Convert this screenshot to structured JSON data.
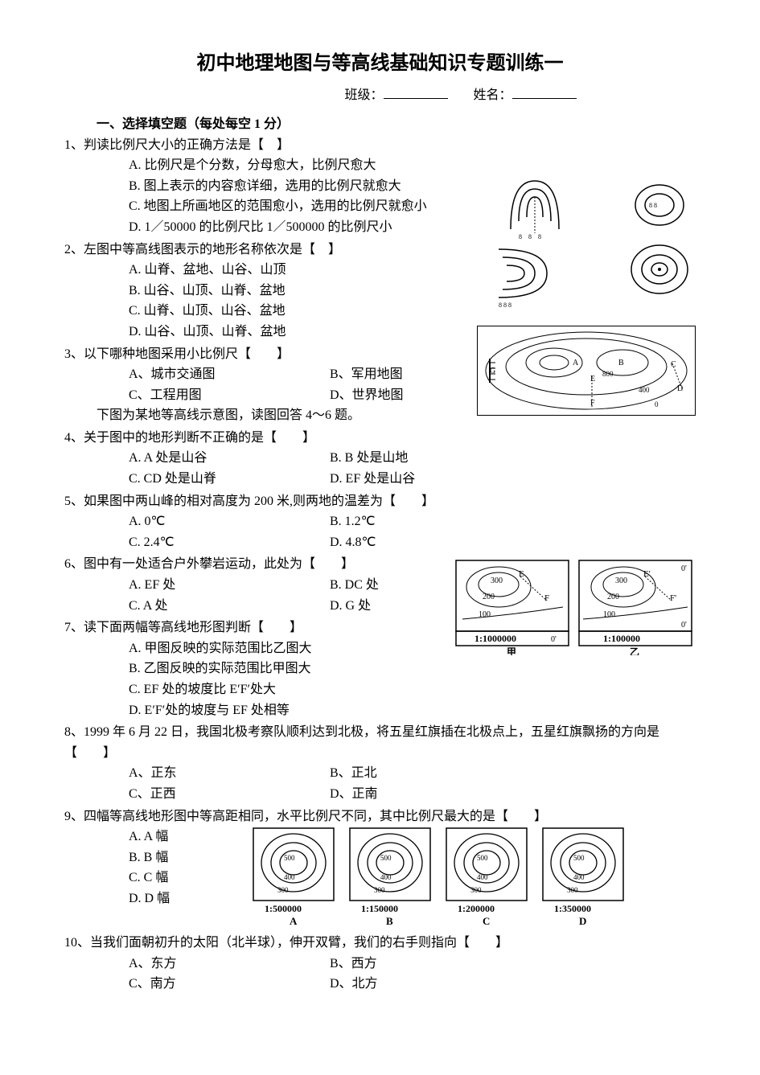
{
  "title": "初中地理地图与等高线基础知识专题训练一",
  "header": {
    "class_label": "班级：",
    "name_label": "姓名："
  },
  "section1": "一、选择填空题（每处每空 1 分）",
  "q1": {
    "stem": "1、判读比例尺大小的正确方法是【　】",
    "A": "A. 比例尺是个分数，分母愈大，比例尺愈大",
    "B": "B. 图上表示的内容愈详细，选用的比例尺就愈大",
    "C": "C. 地图上所画地区的范围愈小，选用的比例尺就愈小",
    "D": "D. 1／50000 的比例尺比 1／500000 的比例尺小"
  },
  "q2": {
    "stem": "2、左图中等高线图表示的地形名称依次是【　】",
    "A": "A. 山脊、盆地、山谷、山顶",
    "B": "B. 山谷、山顶、山脊、盆地",
    "C": "C. 山脊、山顶、山谷、盆地",
    "D": "D. 山谷、山顶、山脊、盆地"
  },
  "q3": {
    "stem": "3、以下哪种地图采用小比例尺【　　】",
    "A": "A、城市交通图",
    "B": "B、军用地图",
    "C": "C、工程用图",
    "D": "D、世界地图",
    "note": "下图为某地等高线示意图，读图回答 4～6 题。"
  },
  "q4": {
    "stem": "4、关于图中的地形判断不正确的是【　　】",
    "A": "A. A 处是山谷",
    "B": "B. B 处是山地",
    "C": "C. CD 处是山脊",
    "D": "D. EF 处是山谷"
  },
  "q5": {
    "stem": "5、如果图中两山峰的相对高度为 200 米,则两地的温差为【　　】",
    "A": "A. 0℃",
    "B": "B. 1.2℃",
    "C": "C. 2.4℃",
    "D": "D. 4.8℃"
  },
  "q6": {
    "stem": "6、图中有一处适合户外攀岩运动，此处为【　　】",
    "A": "A. EF 处",
    "B": "B. DC 处",
    "C": "C. A 处",
    "D": "D. G 处"
  },
  "q7": {
    "stem": "7、读下面两幅等高线地形图判断【　　】",
    "A": "A. 甲图反映的实际范围比乙图大",
    "B": "B. 乙图反映的实际范围比甲图大",
    "C": "C. EF 处的坡度比 E′F′处大",
    "D": "D. E′F′处的坡度与 EF 处相等"
  },
  "q8": {
    "stem": "8、1999 年 6 月 22 日，我国北极考察队顺利达到北极，将五星红旗插在北极点上，五星红旗飘扬的方向是【　　】",
    "A": "A、正东",
    "B": "B、正北",
    "C": "C、正西",
    "D": "D、正南"
  },
  "q9": {
    "stem": "9、四幅等高线地形图中等高距相同，水平比例尺不同，其中比例尺最大的是【　　】",
    "A": "A. A 幅",
    "B": "B. B 幅",
    "C": "C. C 幅",
    "D": "D. D 幅",
    "scales": [
      "1:500000",
      "1:150000",
      "1:200000",
      "1:350000"
    ],
    "labels": [
      "A",
      "B",
      "C",
      "D"
    ]
  },
  "q10": {
    "stem": "10、当我们面朝初升的太阳（北半球），伸开双臂，我们的右手则指向【　　】",
    "A": "A、东方",
    "B": "B、西方",
    "C": "C、南方",
    "D": "D、北方"
  },
  "fig_contour_456": {
    "labels": [
      "A",
      "B",
      "C",
      "D",
      "E",
      "F",
      "G"
    ],
    "values": [
      "800",
      "400",
      "0"
    ]
  },
  "fig7": {
    "left_scale": "1:1000000",
    "right_scale": "1:100000",
    "left_label": "甲",
    "right_label": "乙",
    "vals": [
      "300",
      "200",
      "100"
    ]
  },
  "fig9_vals": [
    "500",
    "400",
    "300"
  ],
  "colors": {
    "text": "#000000",
    "bg": "#ffffff",
    "line": "#000000"
  }
}
